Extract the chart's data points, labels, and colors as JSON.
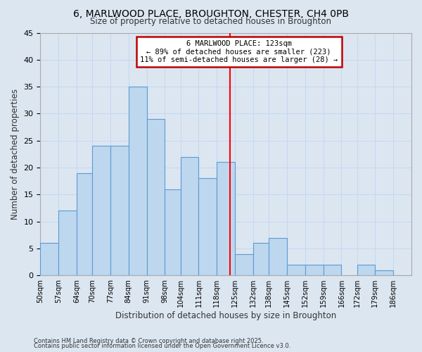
{
  "title": "6, MARLWOOD PLACE, BROUGHTON, CHESTER, CH4 0PB",
  "subtitle": "Size of property relative to detached houses in Broughton",
  "xlabel": "Distribution of detached houses by size in Broughton",
  "ylabel": "Number of detached properties",
  "bin_labels": [
    "50sqm",
    "57sqm",
    "64sqm",
    "70sqm",
    "77sqm",
    "84sqm",
    "91sqm",
    "98sqm",
    "104sqm",
    "111sqm",
    "118sqm",
    "125sqm",
    "132sqm",
    "138sqm",
    "145sqm",
    "152sqm",
    "159sqm",
    "166sqm",
    "172sqm",
    "179sqm",
    "186sqm"
  ],
  "bin_edges": [
    50,
    57,
    64,
    70,
    77,
    84,
    91,
    98,
    104,
    111,
    118,
    125,
    132,
    138,
    145,
    152,
    159,
    166,
    172,
    179,
    186,
    193
  ],
  "counts": [
    6,
    12,
    19,
    24,
    24,
    35,
    29,
    16,
    22,
    18,
    21,
    4,
    6,
    7,
    2,
    2,
    2,
    0,
    2,
    1,
    0
  ],
  "bar_color": "#bdd7ee",
  "bar_edge_color": "#5b9bd5",
  "grid_color": "#c5d9f1",
  "background_color": "#dce6f1",
  "vline_x": 123,
  "vline_color": "#ff0000",
  "ylim": [
    0,
    45
  ],
  "yticks": [
    0,
    5,
    10,
    15,
    20,
    25,
    30,
    35,
    40,
    45
  ],
  "annotation_title": "6 MARLWOOD PLACE: 123sqm",
  "annotation_line1": "← 89% of detached houses are smaller (223)",
  "annotation_line2": "11% of semi-detached houses are larger (28) →",
  "annotation_box_facecolor": "#ffffff",
  "annotation_box_edgecolor": "#c00000",
  "footnote1": "Contains HM Land Registry data © Crown copyright and database right 2025.",
  "footnote2": "Contains public sector information licensed under the Open Government Licence v3.0."
}
